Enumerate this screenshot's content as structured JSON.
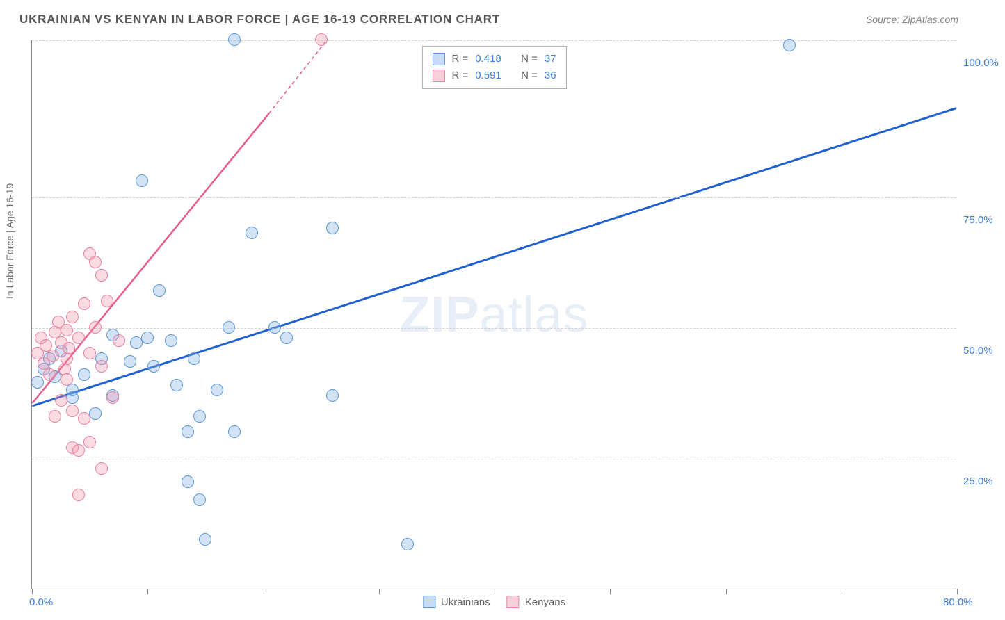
{
  "title": "UKRAINIAN VS KENYAN IN LABOR FORCE | AGE 16-19 CORRELATION CHART",
  "source": "Source: ZipAtlas.com",
  "watermark_bold": "ZIP",
  "watermark_rest": "atlas",
  "ylabel": "In Labor Force | Age 16-19",
  "chart": {
    "type": "scatter",
    "xlim": [
      0,
      80
    ],
    "ylim": [
      0,
      105
    ],
    "y_gridlines": [
      25,
      50,
      75,
      105
    ],
    "y_tick_labels": [
      "25.0%",
      "50.0%",
      "75.0%",
      "100.0%"
    ],
    "x_ticks": [
      0,
      10,
      20,
      30,
      40,
      50,
      60,
      70,
      80
    ],
    "x_tick_labels": {
      "0": "0.0%",
      "80": "80.0%"
    },
    "point_radius": 9,
    "colors": {
      "blue_fill": "rgba(130,175,230,0.35)",
      "blue_stroke": "#5a95d8",
      "blue_line": "#1f5fd0",
      "pink_fill": "rgba(240,150,175,0.35)",
      "pink_stroke": "#e8819f",
      "pink_line": "#e85a8a",
      "grid": "#d0d0d0",
      "axis": "#888888",
      "tick_text": "#3b7dd8",
      "title_text": "#555555",
      "label_text": "#707070"
    },
    "series": [
      {
        "name": "Ukrainians",
        "css_class": "blue",
        "R": "0.418",
        "N": "37",
        "trend": {
          "x1": 0,
          "y1": 35,
          "x2": 80,
          "y2": 92
        },
        "points": [
          [
            17.5,
            105
          ],
          [
            65.5,
            104
          ],
          [
            32.5,
            8.5
          ],
          [
            15,
            9.5
          ],
          [
            13.5,
            20.5
          ],
          [
            14.5,
            17
          ],
          [
            9,
            47
          ],
          [
            2,
            40.5
          ],
          [
            3.5,
            38
          ],
          [
            0.5,
            39.5
          ],
          [
            1,
            42
          ],
          [
            1.5,
            44
          ],
          [
            2.5,
            45.5
          ],
          [
            3.5,
            36.5
          ],
          [
            4.5,
            41
          ],
          [
            5.5,
            33.5
          ],
          [
            7,
            37
          ],
          [
            6,
            44
          ],
          [
            7,
            48.5
          ],
          [
            8.5,
            43.5
          ],
          [
            10.5,
            42.5
          ],
          [
            11,
            57
          ],
          [
            10,
            48
          ],
          [
            12.5,
            39
          ],
          [
            12,
            47.5
          ],
          [
            14,
            44
          ],
          [
            13.5,
            30
          ],
          [
            14.5,
            33
          ],
          [
            16,
            38
          ],
          [
            17,
            50
          ],
          [
            17.5,
            30
          ],
          [
            19,
            68
          ],
          [
            21,
            50
          ],
          [
            22,
            48
          ],
          [
            26,
            37
          ],
          [
            26,
            69
          ],
          [
            9.5,
            78
          ]
        ]
      },
      {
        "name": "Kenyans",
        "css_class": "pink",
        "R": "0.591",
        "N": "36",
        "trend": {
          "x1": 0,
          "y1": 35.5,
          "x2": 25.5,
          "y2": 105
        },
        "trend_dash_end": {
          "x1": 20.5,
          "y1": 91,
          "x2": 25.5,
          "y2": 105
        },
        "points": [
          [
            25,
            105
          ],
          [
            0.5,
            45
          ],
          [
            1,
            43
          ],
          [
            1.5,
            41
          ],
          [
            0.8,
            48
          ],
          [
            1.2,
            46.5
          ],
          [
            1.8,
            44.5
          ],
          [
            2,
            49
          ],
          [
            2.5,
            47
          ],
          [
            2.3,
            51
          ],
          [
            3,
            44
          ],
          [
            3.2,
            46
          ],
          [
            3,
            49.5
          ],
          [
            3.5,
            52
          ],
          [
            2.8,
            42
          ],
          [
            4,
            48
          ],
          [
            4.5,
            54.5
          ],
          [
            5,
            45
          ],
          [
            5.5,
            50
          ],
          [
            6,
            42.5
          ],
          [
            6.5,
            55
          ],
          [
            6,
            60
          ],
          [
            7,
            36.5
          ],
          [
            5,
            64
          ],
          [
            5.5,
            62.5
          ],
          [
            7.5,
            47.5
          ],
          [
            3.5,
            34
          ],
          [
            4.5,
            32.5
          ],
          [
            5,
            28
          ],
          [
            2.5,
            36
          ],
          [
            3.5,
            27
          ],
          [
            4,
            26.5
          ],
          [
            6,
            23
          ],
          [
            4,
            18
          ],
          [
            2,
            33
          ],
          [
            3,
            40
          ]
        ]
      }
    ]
  },
  "legend_top": {
    "rows": [
      {
        "swatch": "blue",
        "r_label": "R =",
        "r_val": "0.418",
        "n_label": "N =",
        "n_val": "37"
      },
      {
        "swatch": "pink",
        "r_label": "R =",
        "r_val": "0.591",
        "n_label": "N =",
        "n_val": "36"
      }
    ]
  },
  "legend_bottom": {
    "items": [
      {
        "swatch": "blue",
        "label": "Ukrainians"
      },
      {
        "swatch": "pink",
        "label": "Kenyans"
      }
    ]
  }
}
